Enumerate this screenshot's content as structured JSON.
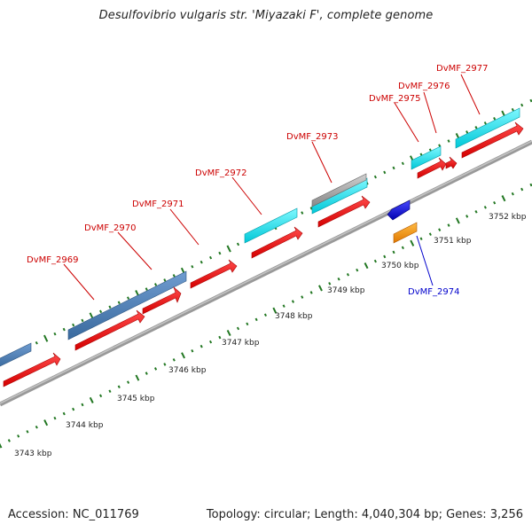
{
  "title": "Desulfovibrio vulgaris str. 'Miyazaki F', complete genome",
  "footer": {
    "accession": "Accession: NC_011769",
    "summary": "Topology: circular; Length: 4,040,304 bp; Genes: 3,256"
  },
  "tick_labels": [
    "3743 kbp",
    "3744 kbp",
    "3745 kbp",
    "3746 kbp",
    "3747 kbp",
    "3748 kbp",
    "3749 kbp",
    "3750 kbp",
    "3751 kbp",
    "3752 kbp"
  ],
  "gene_labels": [
    "DvMF_2969",
    "DvMF_2970",
    "DvMF_2971",
    "DvMF_2972",
    "DvMF_2973",
    "DvMF_2974",
    "DvMF_2975",
    "DvMF_2976",
    "DvMF_2977"
  ],
  "colors": {
    "cds": "#ff0000",
    "steelblue_feature": "#4a7fb5",
    "cyan_feature": "#00e5ee",
    "gray_feature": "#a0a0a0",
    "blue_feature": "#0000ee",
    "orange_feature": "#ff9900",
    "backbone": "#999999",
    "tick": "#227722",
    "label_forward": "#cc0000",
    "label_reverse": "#0000cc"
  }
}
